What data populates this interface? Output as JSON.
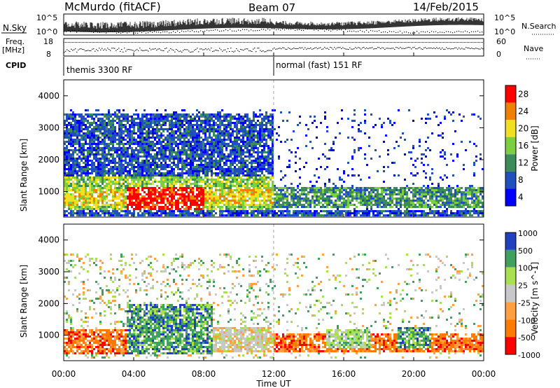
{
  "header": {
    "station": "McMurdo (fitACF)",
    "beam": "Beam 07",
    "date": "14/Feb/2015"
  },
  "top_panel": {
    "left_label": "N.Sky",
    "right_label": "N.Search",
    "left_ticks": [
      "10^5",
      "10^0"
    ],
    "right_ticks": [
      "10^5",
      "10^0"
    ]
  },
  "freq_panel": {
    "left_label_line1": "Freq.",
    "left_label_line2": "[MHz]",
    "left_ticks": [
      "18",
      "8"
    ],
    "right_label": "Nave",
    "right_ticks": [
      "60",
      "0"
    ]
  },
  "cpid": {
    "label": "CPID",
    "segment1": "themis 3300 RF",
    "segment2": "normal (fast) 151 RF"
  },
  "x_axis": {
    "label": "Time UT",
    "ticks": [
      "00:00",
      "04:00",
      "08:00",
      "12:00",
      "16:00",
      "20:00",
      "00:00"
    ]
  },
  "colors": {
    "power": [
      "#0000ff",
      "#2050c0",
      "#3c8c5a",
      "#7cd040",
      "#f0e020",
      "#f08000",
      "#ff0000"
    ],
    "velocity": [
      "#ff0000",
      "#ff7a00",
      "#ffa040",
      "#c8c8c8",
      "#a8e050",
      "#3fa060",
      "#2040c0"
    ]
  },
  "chart_data": [
    {
      "type": "heatmap",
      "panel": "power",
      "ylabel": "Slant Range [km]",
      "xlabel": "",
      "yticks": [
        "1000",
        "2000",
        "3000",
        "4000"
      ],
      "ylim": [
        200,
        4500
      ],
      "xlim": [
        0,
        24
      ],
      "colorbar": {
        "label": "Power [dB]",
        "ticks": [
          "4",
          "8",
          "12",
          "16",
          "20",
          "24",
          "28"
        ]
      },
      "regions": [
        {
          "t0": 0.0,
          "t1": 12.0,
          "r0": 400,
          "r1": 1500,
          "level": 3
        },
        {
          "t0": 0.0,
          "t1": 24.0,
          "r0": 600,
          "r1": 1100,
          "level": 4
        },
        {
          "t0": 3.5,
          "t1": 8.0,
          "r0": 400,
          "r1": 1200,
          "level": 6
        },
        {
          "t0": 0.0,
          "t1": 12.0,
          "r0": 1500,
          "r1": 3500,
          "level": 1
        },
        {
          "t0": 12.0,
          "t1": 24.0,
          "r0": 500,
          "r1": 1200,
          "level": 2
        },
        {
          "t0": 0.0,
          "t1": 24.0,
          "r0": 250,
          "r1": 450,
          "level": 1
        }
      ]
    },
    {
      "type": "heatmap",
      "panel": "velocity",
      "ylabel": "Slant Range [km]",
      "xlabel": "Time UT",
      "yticks": [
        "1000",
        "2000",
        "3000",
        "4000"
      ],
      "ylim": [
        200,
        4500
      ],
      "xlim": [
        0,
        24
      ],
      "colorbar": {
        "label": "Velocity [m s^-1]",
        "ticks": [
          "1000",
          "500",
          "100",
          "25",
          "-25",
          "-100",
          "-500",
          "-1000"
        ]
      },
      "regions": [
        {
          "t0": 0.0,
          "t1": 3.5,
          "r0": 400,
          "r1": 1200,
          "level": 1
        },
        {
          "t0": 3.5,
          "t1": 8.5,
          "r0": 400,
          "r1": 2000,
          "level": 5
        },
        {
          "t0": 8.5,
          "t1": 12.0,
          "r0": 500,
          "r1": 1300,
          "level": 3
        },
        {
          "t0": 12.0,
          "t1": 24.0,
          "r0": 500,
          "r1": 1100,
          "level": 1
        },
        {
          "t0": 15.0,
          "t1": 17.5,
          "r0": 600,
          "r1": 1200,
          "level": 4
        },
        {
          "t0": 19.0,
          "t1": 21.0,
          "r0": 600,
          "r1": 1300,
          "level": 5
        }
      ]
    }
  ]
}
